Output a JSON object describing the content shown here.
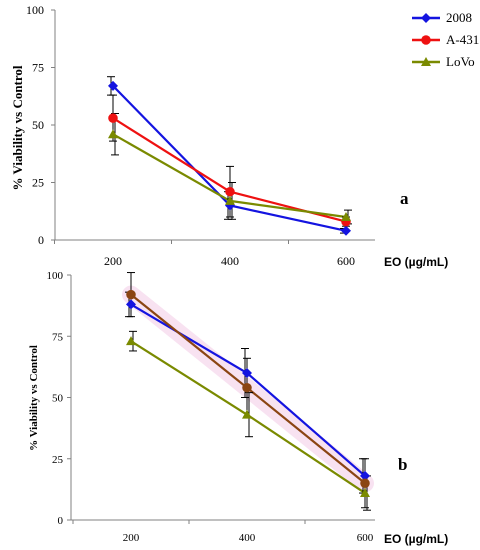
{
  "chart_data": [
    {
      "type": "line",
      "panel_label": "a",
      "xlabel": "EO (µg/mL)",
      "ylabel": "% Viability vs Control",
      "categories": [
        "200",
        "400",
        "600"
      ],
      "ylim": [
        0,
        100
      ],
      "yticks": [
        "0",
        "25",
        "50",
        "75",
        "100"
      ],
      "grid": false,
      "legend": "top-right",
      "series": [
        {
          "name": "2008",
          "color": "#1414e0",
          "marker": "diamond",
          "values": [
            67,
            15,
            4
          ],
          "errors": [
            4,
            6,
            1
          ]
        },
        {
          "name": "A-431",
          "color": "#ee1111",
          "marker": "circle",
          "values": [
            53,
            21,
            8
          ],
          "errors": [
            10,
            11,
            2
          ]
        },
        {
          "name": "LoVo",
          "color": "#7a8a00",
          "marker": "triangle",
          "values": [
            46,
            17,
            10
          ],
          "errors": [
            9,
            8,
            3
          ]
        }
      ]
    },
    {
      "type": "line",
      "panel_label": "b",
      "xlabel": "EO (µg/mL)",
      "ylabel": "% Viability vs Control",
      "categories": [
        "200",
        "400",
        "600"
      ],
      "ylim": [
        0,
        100
      ],
      "yticks": [
        "0",
        "25",
        "50",
        "75",
        "100"
      ],
      "grid": false,
      "series": [
        {
          "color": "#1414e0",
          "marker": "diamond",
          "values": [
            88,
            60,
            18
          ],
          "errors": [
            5,
            10,
            7
          ]
        },
        {
          "color": "#8b4513",
          "marker": "circle",
          "values": [
            92,
            54,
            15
          ],
          "errors": [
            9,
            12,
            10
          ]
        },
        {
          "color": "#7a8a00",
          "marker": "triangle",
          "values": [
            73,
            43,
            11
          ],
          "errors": [
            4,
            9,
            7
          ]
        }
      ]
    }
  ]
}
